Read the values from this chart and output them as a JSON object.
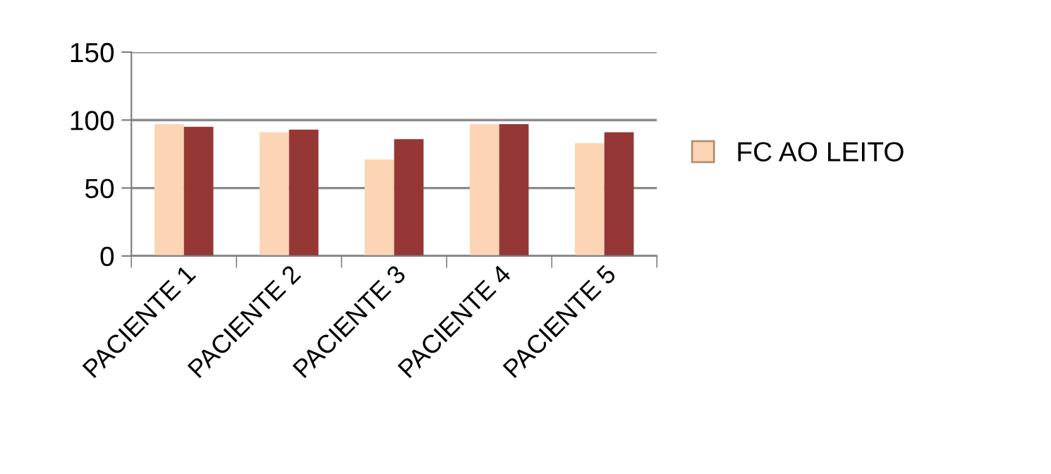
{
  "chart_data": {
    "type": "bar",
    "categories": [
      "PACIENTE 1",
      "PACIENTE 2",
      "PACIENTE 3",
      "PACIENTE 4",
      "PACIENTE 5"
    ],
    "series": [
      {
        "name": "FC AO LEITO",
        "color": "#fcd5b4",
        "values": [
          97,
          91,
          71,
          97,
          83
        ]
      },
      {
        "color": "#953735",
        "values": [
          95,
          93,
          86,
          97,
          91
        ]
      }
    ],
    "ylim": [
      0,
      150
    ],
    "yticks": [
      0,
      50,
      100,
      150
    ],
    "grid": "y",
    "legend": "right"
  }
}
